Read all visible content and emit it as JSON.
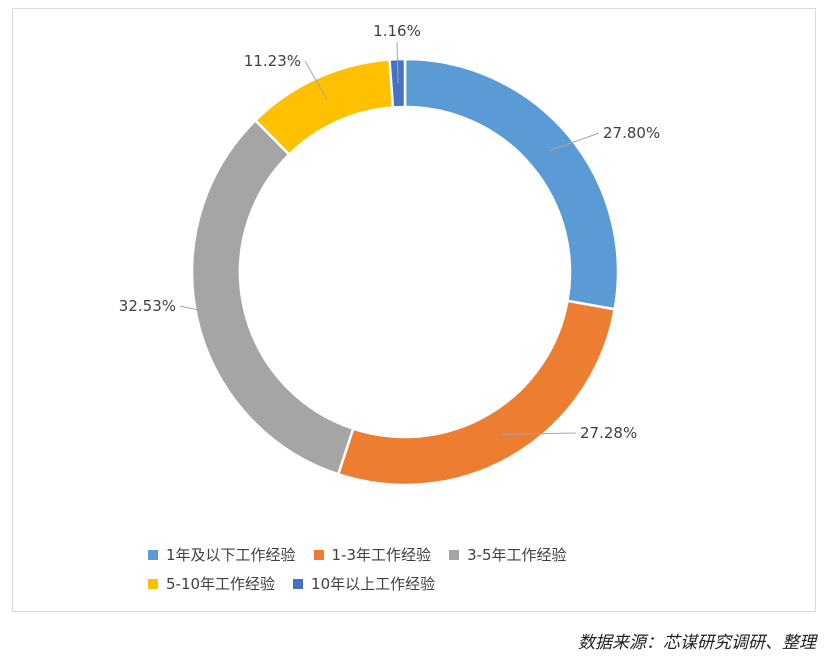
{
  "chart_data": {
    "type": "pie",
    "donut": true,
    "categories": [
      "1年及以下工作经验",
      "1-3年工作经验",
      "3-5年工作经验",
      "5-10年工作经验",
      "10年以上工作经验"
    ],
    "values": [
      27.8,
      27.28,
      32.53,
      11.23,
      1.16
    ],
    "labels": [
      "27.80%",
      "27.28%",
      "32.53%",
      "11.23%",
      "1.16%"
    ],
    "colors": [
      "#5B9BD5",
      "#ED7D31",
      "#A5A5A5",
      "#FFC000",
      "#4472C4"
    ],
    "legend_position": "bottom"
  },
  "source_note": "数据来源：芯谋研究调研、整理"
}
